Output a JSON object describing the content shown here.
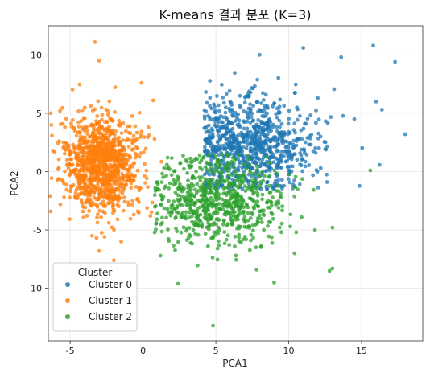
{
  "chart_data": {
    "type": "scatter",
    "title": "K-means 결과 분포 (K=3)",
    "xlabel": "PCA1",
    "ylabel": "PCA2",
    "xlim": [
      -6.5,
      19.2
    ],
    "ylim": [
      -14.5,
      12.5
    ],
    "xticks": [
      -5,
      0,
      5,
      10,
      15
    ],
    "yticks": [
      10,
      5,
      0,
      -5,
      -10
    ],
    "grid": true,
    "legend": {
      "title": "Cluster",
      "placement": "lower-left"
    },
    "series": [
      {
        "name": "Cluster 0",
        "color": "#1f77b4",
        "cluster": {
          "cx": 6.8,
          "cy": 2.2,
          "sx": 2.2,
          "sy": 2.0,
          "n": 900
        },
        "points": [
          [
            15.8,
            10.8
          ],
          [
            11.0,
            10.6
          ],
          [
            8.0,
            10.0
          ],
          [
            17.3,
            9.4
          ],
          [
            13.6,
            9.8
          ],
          [
            18.0,
            3.2
          ],
          [
            16.0,
            6.0
          ],
          [
            14.5,
            4.5
          ],
          [
            12.2,
            0.3
          ],
          [
            10.3,
            -1.1
          ],
          [
            9.1,
            -0.8
          ],
          [
            16.4,
            5.3
          ]
        ]
      },
      {
        "name": "Cluster 1",
        "color": "#ff7f0e",
        "cluster": {
          "cx": -2.8,
          "cy": 0.5,
          "sx": 1.3,
          "sy": 2.0,
          "n": 1100
        },
        "points": [
          [
            -3.3,
            11.1
          ],
          [
            -3.0,
            9.5
          ],
          [
            -5.7,
            5.2
          ],
          [
            -0.1,
            7.6
          ],
          [
            0.7,
            6.1
          ],
          [
            -3.0,
            -6.8
          ],
          [
            -2.0,
            -7.6
          ],
          [
            -1.5,
            -6.0
          ],
          [
            -3.5,
            -5.5
          ],
          [
            0.5,
            -3.8
          ]
        ]
      },
      {
        "name": "Cluster 2",
        "color": "#2ca02c",
        "cluster": {
          "cx": 5.2,
          "cy": -2.5,
          "sx": 2.3,
          "sy": 1.8,
          "n": 700
        },
        "points": [
          [
            15.6,
            0.1
          ],
          [
            4.8,
            -13.2
          ],
          [
            2.4,
            -9.6
          ],
          [
            13.0,
            -8.3
          ],
          [
            12.8,
            -8.5
          ],
          [
            9.0,
            -9.5
          ],
          [
            1.2,
            -7.2
          ],
          [
            10.4,
            -7.0
          ],
          [
            11.8,
            -5.0
          ],
          [
            7.8,
            -8.4
          ]
        ]
      }
    ]
  }
}
